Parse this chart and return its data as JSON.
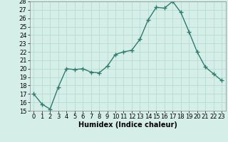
{
  "x": [
    0,
    1,
    2,
    3,
    4,
    5,
    6,
    7,
    8,
    9,
    10,
    11,
    12,
    13,
    14,
    15,
    16,
    17,
    18,
    19,
    20,
    21,
    22,
    23
  ],
  "y": [
    17.0,
    15.8,
    15.2,
    17.8,
    20.0,
    19.9,
    20.0,
    19.6,
    19.5,
    20.3,
    21.7,
    22.0,
    22.2,
    23.5,
    25.8,
    27.3,
    27.2,
    28.0,
    26.7,
    24.4,
    22.0,
    20.2,
    19.4,
    18.6
  ],
  "line_color": "#2e7d6e",
  "marker": "+",
  "marker_size": 4,
  "marker_lw": 1.0,
  "bg_color": "#d6eee8",
  "grid_color": "#b0d8ce",
  "xlabel": "Humidex (Indice chaleur)",
  "ylim": [
    15,
    28
  ],
  "xlim_min": -0.5,
  "xlim_max": 23.5,
  "yticks": [
    15,
    16,
    17,
    18,
    19,
    20,
    21,
    22,
    23,
    24,
    25,
    26,
    27,
    28
  ],
  "xticks": [
    0,
    1,
    2,
    3,
    4,
    5,
    6,
    7,
    8,
    9,
    10,
    11,
    12,
    13,
    14,
    15,
    16,
    17,
    18,
    19,
    20,
    21,
    22,
    23
  ],
  "tick_fontsize": 6,
  "xlabel_fontsize": 7,
  "linewidth": 1.0
}
